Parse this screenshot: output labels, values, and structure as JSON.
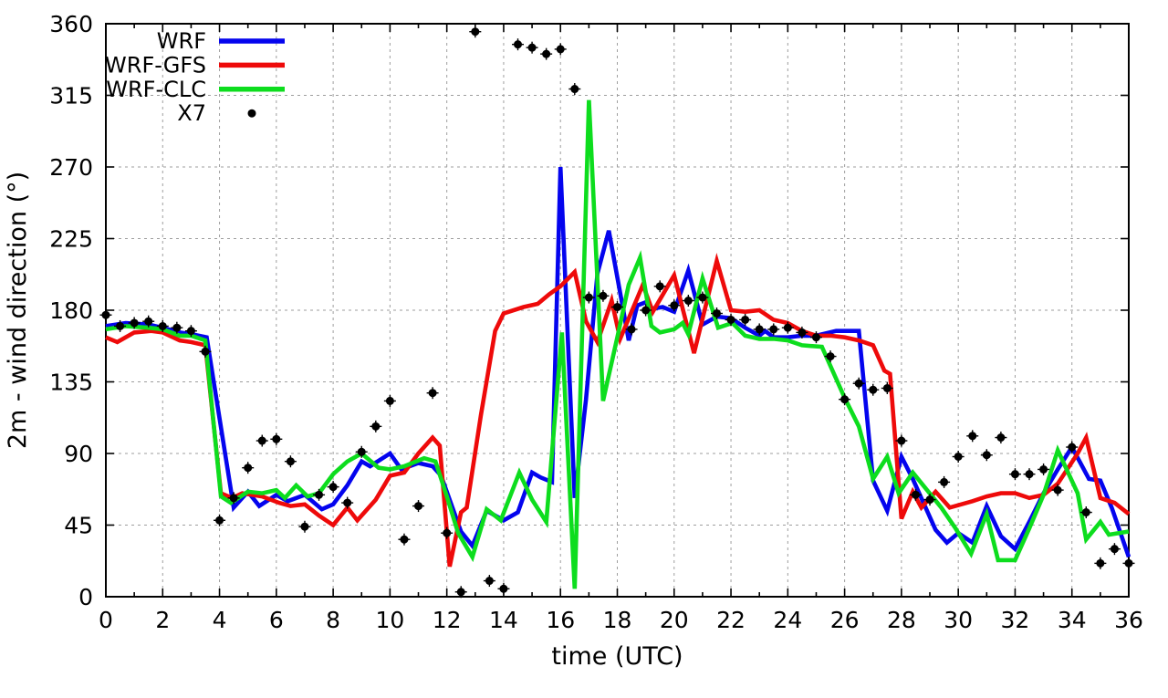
{
  "window": {
    "background": "#ffffff"
  },
  "chart_data": {
    "type": "line+scatter",
    "title": "",
    "xlabel": "time (UTC)",
    "ylabel": "2m - wind direction (°)",
    "xlim": [
      0,
      36
    ],
    "ylim": [
      0,
      360
    ],
    "x_ticks": [
      0,
      2,
      4,
      6,
      8,
      10,
      12,
      14,
      16,
      18,
      20,
      22,
      24,
      26,
      28,
      30,
      32,
      34,
      36
    ],
    "x_minor_ticks": [
      1,
      3,
      5,
      7,
      9,
      11,
      13,
      15,
      17,
      19,
      21,
      23,
      25,
      27,
      29,
      31,
      33,
      35
    ],
    "y_ticks": [
      0,
      45,
      90,
      135,
      180,
      225,
      270,
      315,
      360
    ],
    "grid": true,
    "legend_position": "top-left",
    "series": [
      {
        "name": "WRF",
        "type": "line",
        "color": "#0404ee",
        "points": [
          [
            0,
            170
          ],
          [
            0.7,
            172
          ],
          [
            1.5,
            171
          ],
          [
            2,
            169
          ],
          [
            2.6,
            166
          ],
          [
            3,
            165
          ],
          [
            3.55,
            163
          ],
          [
            4,
            112
          ],
          [
            4.5,
            56
          ],
          [
            5,
            66
          ],
          [
            5.4,
            57
          ],
          [
            6,
            64
          ],
          [
            6.4,
            60
          ],
          [
            7,
            64
          ],
          [
            7.6,
            55
          ],
          [
            8,
            58
          ],
          [
            8.5,
            70
          ],
          [
            9,
            85
          ],
          [
            9.3,
            82
          ],
          [
            10,
            90
          ],
          [
            10.4,
            80
          ],
          [
            11,
            84
          ],
          [
            11.5,
            82
          ],
          [
            11.8,
            76
          ],
          [
            12.5,
            41
          ],
          [
            12.9,
            32
          ],
          [
            13.4,
            54
          ],
          [
            14,
            48
          ],
          [
            14.5,
            53
          ],
          [
            15,
            78
          ],
          [
            15.3,
            75
          ],
          [
            15.7,
            72
          ],
          [
            16,
            270
          ],
          [
            16.5,
            62
          ],
          [
            16.9,
            124
          ],
          [
            17.3,
            203
          ],
          [
            17.7,
            230
          ],
          [
            18.1,
            191
          ],
          [
            18.4,
            161
          ],
          [
            18.7,
            183
          ],
          [
            19,
            185
          ],
          [
            19.25,
            181
          ],
          [
            19.6,
            182
          ],
          [
            20,
            179
          ],
          [
            20.5,
            205
          ],
          [
            21,
            171
          ],
          [
            21.5,
            176
          ],
          [
            22,
            175
          ],
          [
            22.5,
            169
          ],
          [
            23,
            164
          ],
          [
            23.2,
            167
          ],
          [
            23.5,
            163
          ],
          [
            24,
            163
          ],
          [
            24.5,
            164
          ],
          [
            25,
            164
          ],
          [
            25.7,
            167
          ],
          [
            26.5,
            167
          ],
          [
            27,
            73
          ],
          [
            27.5,
            54
          ],
          [
            28,
            88
          ],
          [
            28.4,
            74
          ],
          [
            28.8,
            58
          ],
          [
            29.2,
            42
          ],
          [
            29.6,
            34
          ],
          [
            30,
            40
          ],
          [
            30.5,
            34
          ],
          [
            31,
            57
          ],
          [
            31.5,
            38
          ],
          [
            32,
            30
          ],
          [
            32.5,
            47
          ],
          [
            33,
            65
          ],
          [
            33.5,
            80
          ],
          [
            34,
            94
          ],
          [
            34.6,
            74
          ],
          [
            35,
            73
          ],
          [
            35.4,
            56
          ],
          [
            36,
            25
          ]
        ]
      },
      {
        "name": "WRF-GFS",
        "type": "line",
        "color": "#ee0a0a",
        "points": [
          [
            0,
            163
          ],
          [
            0.4,
            160
          ],
          [
            1,
            166
          ],
          [
            1.6,
            167
          ],
          [
            2,
            166
          ],
          [
            2.6,
            161
          ],
          [
            3,
            160
          ],
          [
            3.5,
            158
          ],
          [
            4.05,
            65
          ],
          [
            4.45,
            62
          ],
          [
            4.8,
            65
          ],
          [
            5.5,
            63
          ],
          [
            6.1,
            59
          ],
          [
            6.5,
            57
          ],
          [
            7,
            58
          ],
          [
            7.5,
            51
          ],
          [
            8,
            45
          ],
          [
            8.5,
            56
          ],
          [
            8.85,
            48
          ],
          [
            9.5,
            61
          ],
          [
            10,
            76
          ],
          [
            10.5,
            78
          ],
          [
            11,
            90
          ],
          [
            11.5,
            100
          ],
          [
            11.75,
            95
          ],
          [
            12.1,
            19
          ],
          [
            12.5,
            53
          ],
          [
            12.7,
            56
          ],
          [
            13.2,
            114
          ],
          [
            13.7,
            167
          ],
          [
            14,
            178
          ],
          [
            14.7,
            182
          ],
          [
            15.2,
            184
          ],
          [
            15.6,
            190
          ],
          [
            16,
            195
          ],
          [
            16.5,
            204
          ],
          [
            16.9,
            173
          ],
          [
            17.3,
            160
          ],
          [
            17.8,
            186
          ],
          [
            18.1,
            162
          ],
          [
            18.9,
            196
          ],
          [
            19.25,
            179
          ],
          [
            20,
            202
          ],
          [
            20.7,
            153
          ],
          [
            21.5,
            211
          ],
          [
            22,
            180
          ],
          [
            22.5,
            179
          ],
          [
            23,
            180
          ],
          [
            23.5,
            174
          ],
          [
            24,
            172
          ],
          [
            24.5,
            167
          ],
          [
            25,
            164
          ],
          [
            25.5,
            164
          ],
          [
            26,
            163
          ],
          [
            26.5,
            161
          ],
          [
            27,
            158
          ],
          [
            27.4,
            142
          ],
          [
            27.6,
            140
          ],
          [
            28,
            49
          ],
          [
            28.4,
            66
          ],
          [
            28.7,
            56
          ],
          [
            29.2,
            66
          ],
          [
            29.7,
            56
          ],
          [
            30.5,
            60
          ],
          [
            31,
            63
          ],
          [
            31.5,
            65
          ],
          [
            32,
            65
          ],
          [
            32.5,
            62
          ],
          [
            33,
            64
          ],
          [
            33.5,
            71
          ],
          [
            34.2,
            90
          ],
          [
            34.5,
            100
          ],
          [
            35,
            62
          ],
          [
            35.5,
            59
          ],
          [
            36,
            52
          ]
        ]
      },
      {
        "name": "WRF-CLC",
        "type": "line",
        "color": "#0ddd1e",
        "points": [
          [
            0,
            168
          ],
          [
            0.7,
            170
          ],
          [
            1.5,
            169
          ],
          [
            2,
            168
          ],
          [
            2.6,
            164
          ],
          [
            3,
            164
          ],
          [
            3.5,
            161
          ],
          [
            4.05,
            63
          ],
          [
            4.4,
            59
          ],
          [
            5,
            66
          ],
          [
            5.5,
            65
          ],
          [
            6,
            67
          ],
          [
            6.3,
            62
          ],
          [
            6.7,
            70
          ],
          [
            7.1,
            63
          ],
          [
            7.5,
            65
          ],
          [
            8,
            77
          ],
          [
            8.5,
            85
          ],
          [
            9,
            90
          ],
          [
            9.6,
            81
          ],
          [
            10,
            80
          ],
          [
            10.5,
            82
          ],
          [
            11.2,
            87
          ],
          [
            11.6,
            85
          ],
          [
            12,
            63
          ],
          [
            12.4,
            40
          ],
          [
            12.9,
            25
          ],
          [
            13.4,
            55
          ],
          [
            13.9,
            48
          ],
          [
            14.55,
            78
          ],
          [
            15,
            61
          ],
          [
            15.5,
            47
          ],
          [
            16.05,
            166
          ],
          [
            16.5,
            5
          ],
          [
            17,
            312
          ],
          [
            17.5,
            123
          ],
          [
            18,
            163
          ],
          [
            18.4,
            196
          ],
          [
            18.8,
            213
          ],
          [
            19.2,
            170
          ],
          [
            19.5,
            166
          ],
          [
            20,
            168
          ],
          [
            20.3,
            172
          ],
          [
            20.5,
            165
          ],
          [
            21,
            200
          ],
          [
            21.55,
            169
          ],
          [
            22.05,
            172
          ],
          [
            22.5,
            164
          ],
          [
            23,
            162
          ],
          [
            23.5,
            162
          ],
          [
            24,
            161
          ],
          [
            24.5,
            158
          ],
          [
            25.2,
            157
          ],
          [
            26,
            125
          ],
          [
            26.5,
            107
          ],
          [
            27,
            74
          ],
          [
            27.5,
            88
          ],
          [
            27.9,
            65
          ],
          [
            28.4,
            78
          ],
          [
            28.9,
            67
          ],
          [
            29.4,
            56
          ],
          [
            29.9,
            43
          ],
          [
            30.45,
            27
          ],
          [
            31,
            52
          ],
          [
            31.4,
            23
          ],
          [
            32,
            23
          ],
          [
            32.5,
            43
          ],
          [
            33,
            64
          ],
          [
            33.5,
            92
          ],
          [
            34.2,
            65
          ],
          [
            34.5,
            36
          ],
          [
            35,
            47
          ],
          [
            35.3,
            39
          ],
          [
            36,
            41
          ]
        ]
      },
      {
        "name": "X7",
        "type": "scatter",
        "color": "#000000",
        "points": [
          [
            0,
            177
          ],
          [
            0.5,
            170
          ],
          [
            1,
            172
          ],
          [
            1.5,
            173
          ],
          [
            2,
            170
          ],
          [
            2.5,
            169
          ],
          [
            3,
            167
          ],
          [
            3.5,
            154
          ],
          [
            4,
            48
          ],
          [
            4.5,
            62
          ],
          [
            5,
            81
          ],
          [
            5.5,
            98
          ],
          [
            6,
            99
          ],
          [
            6.5,
            85
          ],
          [
            7,
            44
          ],
          [
            7.5,
            64
          ],
          [
            8,
            69
          ],
          [
            8.5,
            59
          ],
          [
            9,
            91
          ],
          [
            9.5,
            107
          ],
          [
            10,
            123
          ],
          [
            10.5,
            36
          ],
          [
            11,
            57
          ],
          [
            11.5,
            128
          ],
          [
            12,
            40
          ],
          [
            12.5,
            3
          ],
          [
            13,
            355
          ],
          [
            13.5,
            10
          ],
          [
            14,
            5
          ],
          [
            14.5,
            347
          ],
          [
            15,
            345
          ],
          [
            15.5,
            341
          ],
          [
            16,
            344
          ],
          [
            16.5,
            319
          ],
          [
            17,
            188
          ],
          [
            17.5,
            189
          ],
          [
            18,
            182
          ],
          [
            18.5,
            168
          ],
          [
            19,
            180
          ],
          [
            19.5,
            195
          ],
          [
            20,
            183
          ],
          [
            20.5,
            186
          ],
          [
            21,
            188
          ],
          [
            21.5,
            178
          ],
          [
            22,
            174
          ],
          [
            22.5,
            174
          ],
          [
            23,
            168
          ],
          [
            23.5,
            168
          ],
          [
            24,
            169
          ],
          [
            24.5,
            166
          ],
          [
            25,
            163
          ],
          [
            25.5,
            151
          ],
          [
            26,
            124
          ],
          [
            26.5,
            134
          ],
          [
            27,
            130
          ],
          [
            27.5,
            131
          ],
          [
            28,
            98
          ],
          [
            28.5,
            64
          ],
          [
            29,
            61
          ],
          [
            29.5,
            72
          ],
          [
            30,
            88
          ],
          [
            30.5,
            101
          ],
          [
            31,
            89
          ],
          [
            31.5,
            100
          ],
          [
            32,
            77
          ],
          [
            32.5,
            77
          ],
          [
            33,
            80
          ],
          [
            33.5,
            67
          ],
          [
            34,
            94
          ],
          [
            34.5,
            53
          ],
          [
            35,
            21
          ],
          [
            35.5,
            30
          ],
          [
            36,
            21
          ]
        ]
      }
    ]
  }
}
